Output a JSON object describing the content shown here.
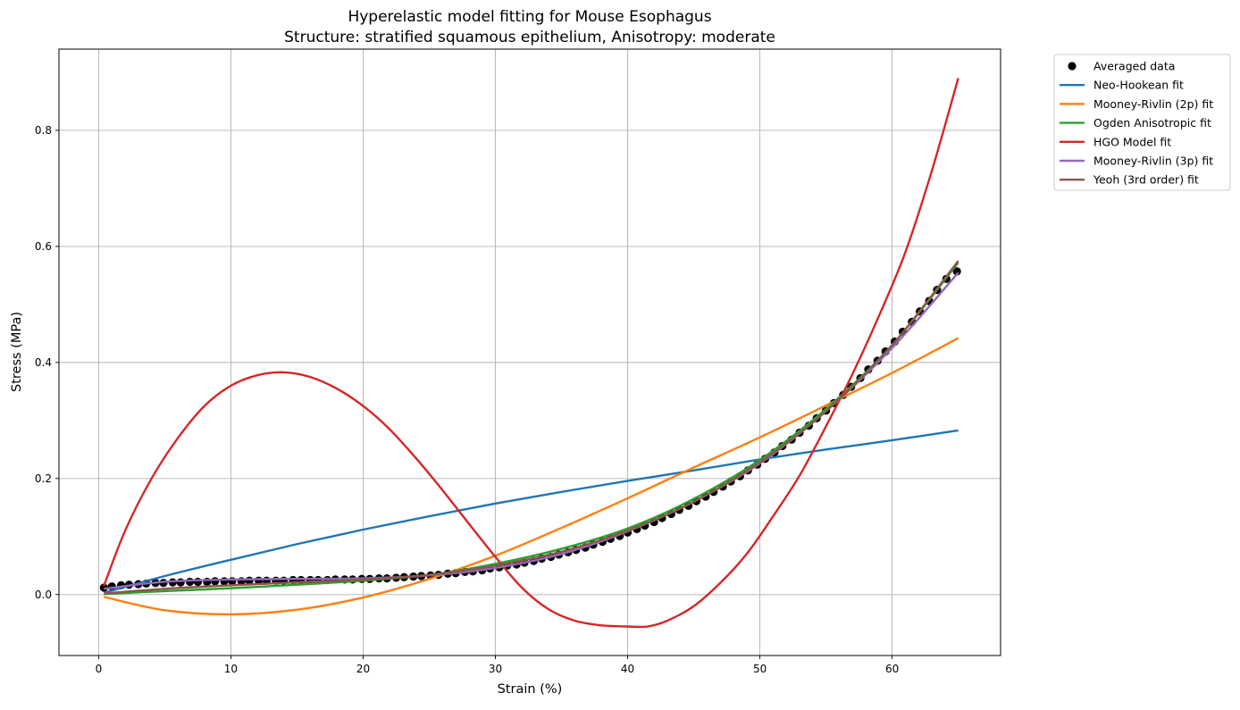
{
  "chart_data": {
    "type": "line",
    "title": "Hyperelastic model fitting for Mouse Esophagus",
    "subtitle": "Structure: stratified squamous epithelium, Anisotropy: moderate",
    "xlabel": "Strain (%)",
    "ylabel": "Stress (MPa)",
    "xlim": [
      -3.0,
      68.2
    ],
    "ylim": [
      -0.105,
      0.94
    ],
    "xticks": [
      0,
      10,
      20,
      30,
      40,
      50,
      60
    ],
    "yticks": [
      0.0,
      0.2,
      0.4,
      0.6,
      0.8
    ],
    "xtick_labels": [
      "0",
      "10",
      "20",
      "30",
      "40",
      "50",
      "60"
    ],
    "ytick_labels": [
      "0.0",
      "0.2",
      "0.4",
      "0.6",
      "0.8"
    ],
    "grid": true,
    "legend_position": "outside top-right",
    "series": [
      {
        "name": "Averaged data",
        "kind": "scatter",
        "color": "#000000",
        "x": [
          0.4,
          1.0,
          1.7,
          2.3,
          3.0,
          3.6,
          4.3,
          4.9,
          5.6,
          6.2,
          6.9,
          7.5,
          8.2,
          8.8,
          9.5,
          10.1,
          10.8,
          11.4,
          12.1,
          12.7,
          13.4,
          14.0,
          14.7,
          15.3,
          16.0,
          16.6,
          17.3,
          17.9,
          18.6,
          19.2,
          19.9,
          20.5,
          21.2,
          21.8,
          22.5,
          23.1,
          23.8,
          24.4,
          25.1,
          25.7,
          26.4,
          27.0,
          27.7,
          28.3,
          29.0,
          29.6,
          30.3,
          30.9,
          31.6,
          32.2,
          32.9,
          33.5,
          34.2,
          34.8,
          35.5,
          36.1,
          36.8,
          37.4,
          38.1,
          38.7,
          39.4,
          40.0,
          40.7,
          41.3,
          42.0,
          42.6,
          43.3,
          43.9,
          44.6,
          45.2,
          45.9,
          46.5,
          47.2,
          47.8,
          48.5,
          49.1,
          49.8,
          50.4,
          51.1,
          51.7,
          52.4,
          53.0,
          53.7,
          54.3,
          55.0,
          55.6,
          56.3,
          56.9,
          57.6,
          58.2,
          58.9,
          59.5,
          60.2,
          60.8,
          61.5,
          62.1,
          62.8,
          63.4,
          64.1,
          64.9
        ],
        "y": [
          0.012,
          0.014,
          0.016,
          0.017,
          0.018,
          0.019,
          0.02,
          0.02,
          0.021,
          0.021,
          0.022,
          0.022,
          0.022,
          0.023,
          0.023,
          0.023,
          0.023,
          0.024,
          0.024,
          0.024,
          0.024,
          0.024,
          0.025,
          0.025,
          0.025,
          0.025,
          0.025,
          0.026,
          0.026,
          0.026,
          0.027,
          0.027,
          0.028,
          0.028,
          0.029,
          0.03,
          0.031,
          0.032,
          0.033,
          0.034,
          0.036,
          0.037,
          0.039,
          0.04,
          0.042,
          0.045,
          0.047,
          0.05,
          0.052,
          0.055,
          0.058,
          0.062,
          0.065,
          0.069,
          0.073,
          0.077,
          0.081,
          0.086,
          0.091,
          0.096,
          0.101,
          0.107,
          0.113,
          0.119,
          0.125,
          0.132,
          0.139,
          0.146,
          0.153,
          0.161,
          0.169,
          0.177,
          0.186,
          0.195,
          0.204,
          0.214,
          0.224,
          0.234,
          0.245,
          0.256,
          0.267,
          0.279,
          0.291,
          0.304,
          0.317,
          0.33,
          0.344,
          0.358,
          0.373,
          0.388,
          0.403,
          0.419,
          0.436,
          0.453,
          0.47,
          0.488,
          0.506,
          0.525,
          0.544,
          0.557
        ]
      },
      {
        "name": "Neo-Hookean fit",
        "kind": "line",
        "color": "#1f77b4",
        "x": [
          0.4,
          5,
          10,
          15,
          20,
          25,
          30,
          35,
          40,
          45,
          50,
          55,
          60,
          65
        ],
        "y": [
          0.003,
          0.032,
          0.06,
          0.087,
          0.112,
          0.135,
          0.157,
          0.177,
          0.196,
          0.214,
          0.233,
          0.25,
          0.266,
          0.283
        ]
      },
      {
        "name": "Mooney-Rivlin (2p) fit",
        "kind": "line",
        "color": "#ff7f0e",
        "x": [
          0.4,
          5,
          10,
          15,
          20,
          25,
          30,
          35,
          40,
          45,
          50,
          55,
          60,
          65
        ],
        "y": [
          -0.004,
          -0.027,
          -0.034,
          -0.026,
          -0.005,
          0.027,
          0.067,
          0.115,
          0.166,
          0.219,
          0.271,
          0.326,
          0.382,
          0.442
        ]
      },
      {
        "name": "Ogden Anisotropic fit",
        "kind": "line",
        "color": "#2ca02c",
        "x": [
          0.4,
          5,
          10,
          15,
          20,
          25,
          30,
          35,
          40,
          45,
          50,
          55,
          60,
          65
        ],
        "y": [
          0.001,
          0.006,
          0.011,
          0.017,
          0.024,
          0.034,
          0.053,
          0.079,
          0.114,
          0.165,
          0.232,
          0.32,
          0.43,
          0.572
        ]
      },
      {
        "name": "HGO Model fit",
        "kind": "line",
        "color": "#d62728",
        "x": [
          0.4,
          2,
          4,
          6,
          8,
          10,
          12,
          14,
          16,
          18,
          20,
          22,
          24,
          26,
          28,
          30,
          32,
          34,
          36,
          38,
          40,
          41.5,
          43,
          45,
          47,
          49,
          51,
          53,
          55,
          57,
          59,
          61,
          63,
          65
        ],
        "y": [
          0.015,
          0.11,
          0.2,
          0.27,
          0.325,
          0.36,
          0.378,
          0.383,
          0.375,
          0.355,
          0.325,
          0.285,
          0.235,
          0.18,
          0.122,
          0.065,
          0.012,
          -0.025,
          -0.045,
          -0.053,
          -0.055,
          -0.055,
          -0.045,
          -0.02,
          0.02,
          0.07,
          0.135,
          0.205,
          0.29,
          0.38,
          0.48,
          0.59,
          0.73,
          0.89
        ]
      },
      {
        "name": "Mooney-Rivlin (3p) fit",
        "kind": "line",
        "color": "#9467bd",
        "x": [
          0.4,
          5,
          10,
          15,
          20,
          25,
          30,
          35,
          40,
          45,
          50,
          55,
          60,
          65
        ],
        "y": [
          0.01,
          0.022,
          0.026,
          0.027,
          0.028,
          0.033,
          0.046,
          0.07,
          0.109,
          0.16,
          0.226,
          0.316,
          0.425,
          0.555
        ]
      },
      {
        "name": "Yeoh (3rd order) fit",
        "kind": "line",
        "color": "#8c564b",
        "x": [
          0.4,
          5,
          10,
          15,
          20,
          25,
          30,
          35,
          40,
          45,
          50,
          55,
          60,
          65
        ],
        "y": [
          0.002,
          0.01,
          0.016,
          0.021,
          0.026,
          0.034,
          0.05,
          0.074,
          0.11,
          0.16,
          0.228,
          0.316,
          0.43,
          0.575
        ]
      }
    ]
  }
}
